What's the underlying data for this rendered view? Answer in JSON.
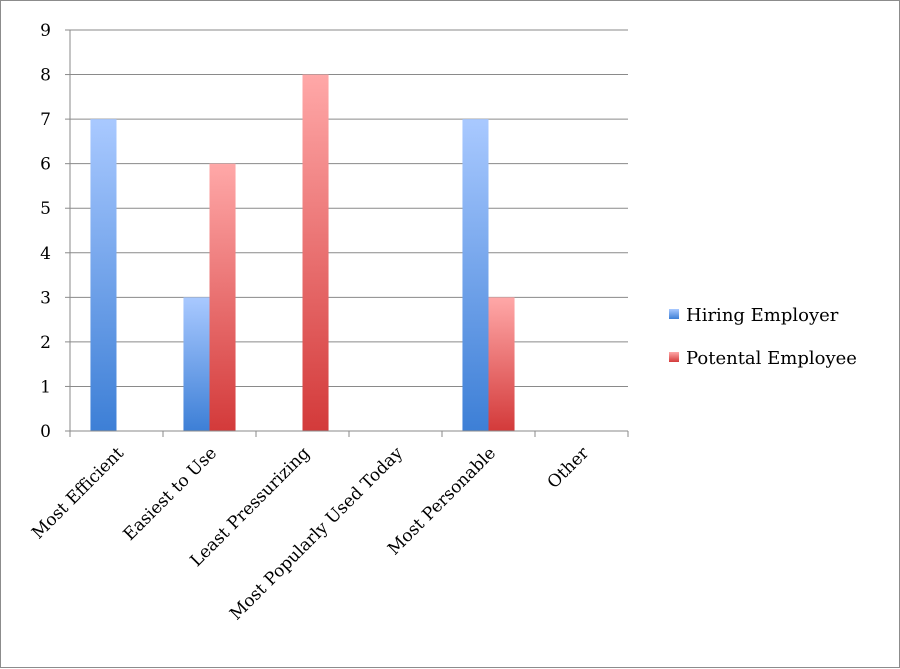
{
  "chart_data": {
    "type": "bar",
    "categories": [
      "Most Efficient",
      "Easiest to Use",
      "Least Pressurizing",
      "Most Popularly Used Today",
      "Most Personable",
      "Other"
    ],
    "series": [
      {
        "name": "Hiring Employer",
        "values": [
          7,
          3,
          0,
          0,
          7,
          0
        ],
        "color_top": "#a9c9ff",
        "color_bottom": "#3d7fd6"
      },
      {
        "name": "Potental Employee",
        "values": [
          0,
          6,
          8,
          0,
          3,
          0
        ],
        "color_top": "#ffa8a8",
        "color_bottom": "#d33a3a"
      }
    ],
    "yticks": [
      "0",
      "1",
      "2",
      "3",
      "4",
      "5",
      "6",
      "7",
      "8",
      "9"
    ],
    "ylim": [
      0,
      9
    ],
    "grid": true,
    "legend_position": "right",
    "title": "",
    "xlabel": "",
    "ylabel": ""
  }
}
